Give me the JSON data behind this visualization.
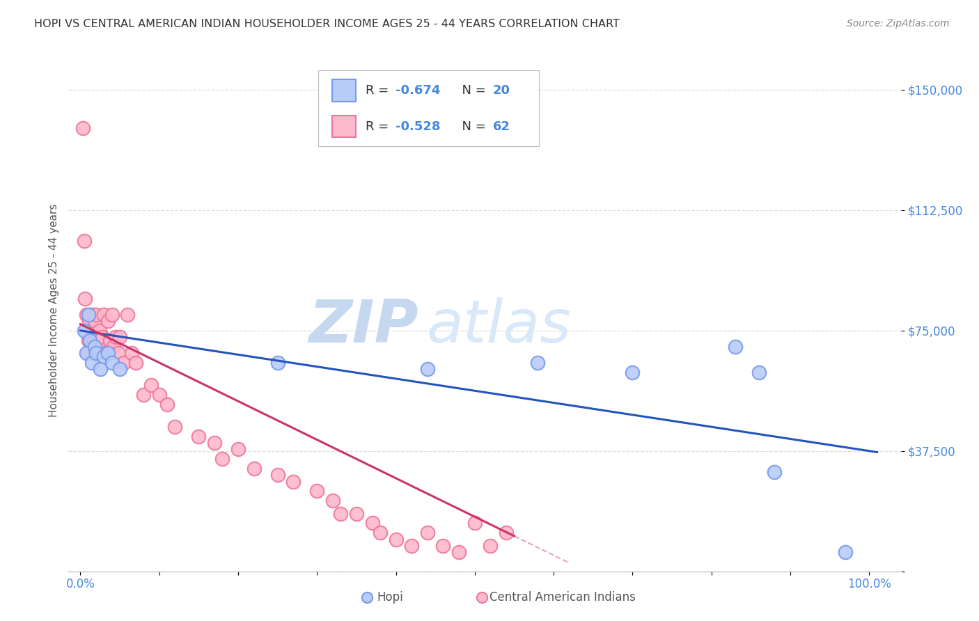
{
  "title": "HOPI VS CENTRAL AMERICAN INDIAN HOUSEHOLDER INCOME AGES 25 - 44 YEARS CORRELATION CHART",
  "source": "Source: ZipAtlas.com",
  "ylabel": "Householder Income Ages 25 - 44 years",
  "background_color": "#ffffff",
  "hopi_fc": "#b8ccf8",
  "hopi_ec": "#7799ee",
  "cai_fc": "#ffb8cc",
  "cai_ec": "#ee7799",
  "blue_line_color": "#2255bb",
  "pink_line_color": "#cc3366",
  "r_hopi": -0.674,
  "n_hopi": 20,
  "r_cai": -0.528,
  "n_cai": 62,
  "ylim": [
    0,
    162500
  ],
  "xlim": [
    -0.015,
    1.04
  ],
  "yticks": [
    0,
    37500,
    75000,
    112500,
    150000
  ],
  "ytick_labels": [
    "",
    "$37,500",
    "$75,000",
    "$112,500",
    "$150,000"
  ],
  "xticks": [
    0.0,
    0.1,
    0.2,
    0.3,
    0.4,
    0.5,
    0.6,
    0.7,
    0.8,
    0.9,
    1.0
  ],
  "xtick_labels": [
    "0.0%",
    "",
    "",
    "",
    "",
    "",
    "",
    "",
    "",
    "",
    "100.0%"
  ],
  "grid_color": "#dddddd",
  "hopi_x": [
    0.005,
    0.008,
    0.01,
    0.012,
    0.015,
    0.018,
    0.02,
    0.025,
    0.03,
    0.035,
    0.04,
    0.05,
    0.25,
    0.44,
    0.58,
    0.7,
    0.83,
    0.86,
    0.88,
    0.97
  ],
  "hopi_y": [
    75000,
    68000,
    80000,
    72000,
    65000,
    70000,
    68000,
    63000,
    67000,
    68000,
    65000,
    63000,
    65000,
    63000,
    65000,
    62000,
    70000,
    62000,
    31000,
    6000
  ],
  "cai_x": [
    0.003,
    0.005,
    0.006,
    0.007,
    0.008,
    0.009,
    0.01,
    0.011,
    0.012,
    0.013,
    0.014,
    0.015,
    0.016,
    0.017,
    0.018,
    0.019,
    0.02,
    0.021,
    0.022,
    0.023,
    0.024,
    0.025,
    0.028,
    0.03,
    0.032,
    0.035,
    0.038,
    0.04,
    0.042,
    0.045,
    0.048,
    0.05,
    0.055,
    0.06,
    0.065,
    0.07,
    0.08,
    0.09,
    0.1,
    0.11,
    0.12,
    0.15,
    0.17,
    0.18,
    0.2,
    0.22,
    0.25,
    0.27,
    0.3,
    0.32,
    0.33,
    0.35,
    0.37,
    0.38,
    0.4,
    0.42,
    0.44,
    0.46,
    0.48,
    0.5,
    0.52,
    0.54
  ],
  "cai_y": [
    138000,
    103000,
    85000,
    75000,
    80000,
    68000,
    72000,
    78000,
    80000,
    73000,
    70000,
    75000,
    80000,
    72000,
    78000,
    68000,
    80000,
    73000,
    68000,
    73000,
    75000,
    72000,
    73000,
    80000,
    68000,
    78000,
    72000,
    80000,
    70000,
    73000,
    68000,
    73000,
    65000,
    80000,
    68000,
    65000,
    55000,
    58000,
    55000,
    52000,
    45000,
    42000,
    40000,
    35000,
    38000,
    32000,
    30000,
    28000,
    25000,
    22000,
    18000,
    18000,
    15000,
    12000,
    10000,
    8000,
    12000,
    8000,
    6000,
    15000,
    8000,
    12000
  ],
  "watermark_zip": "ZIP",
  "watermark_atlas": "atlas",
  "watermark_color": "#dce8f8",
  "tick_color": "#4488dd",
  "axis_label_color": "#555555",
  "legend_box_color": "#eeeeee",
  "hopi_line_intercept": 75000,
  "hopi_line_slope": -37500,
  "cai_line_intercept": 77000,
  "cai_line_slope": -120000,
  "cai_line_x_end": 0.55
}
